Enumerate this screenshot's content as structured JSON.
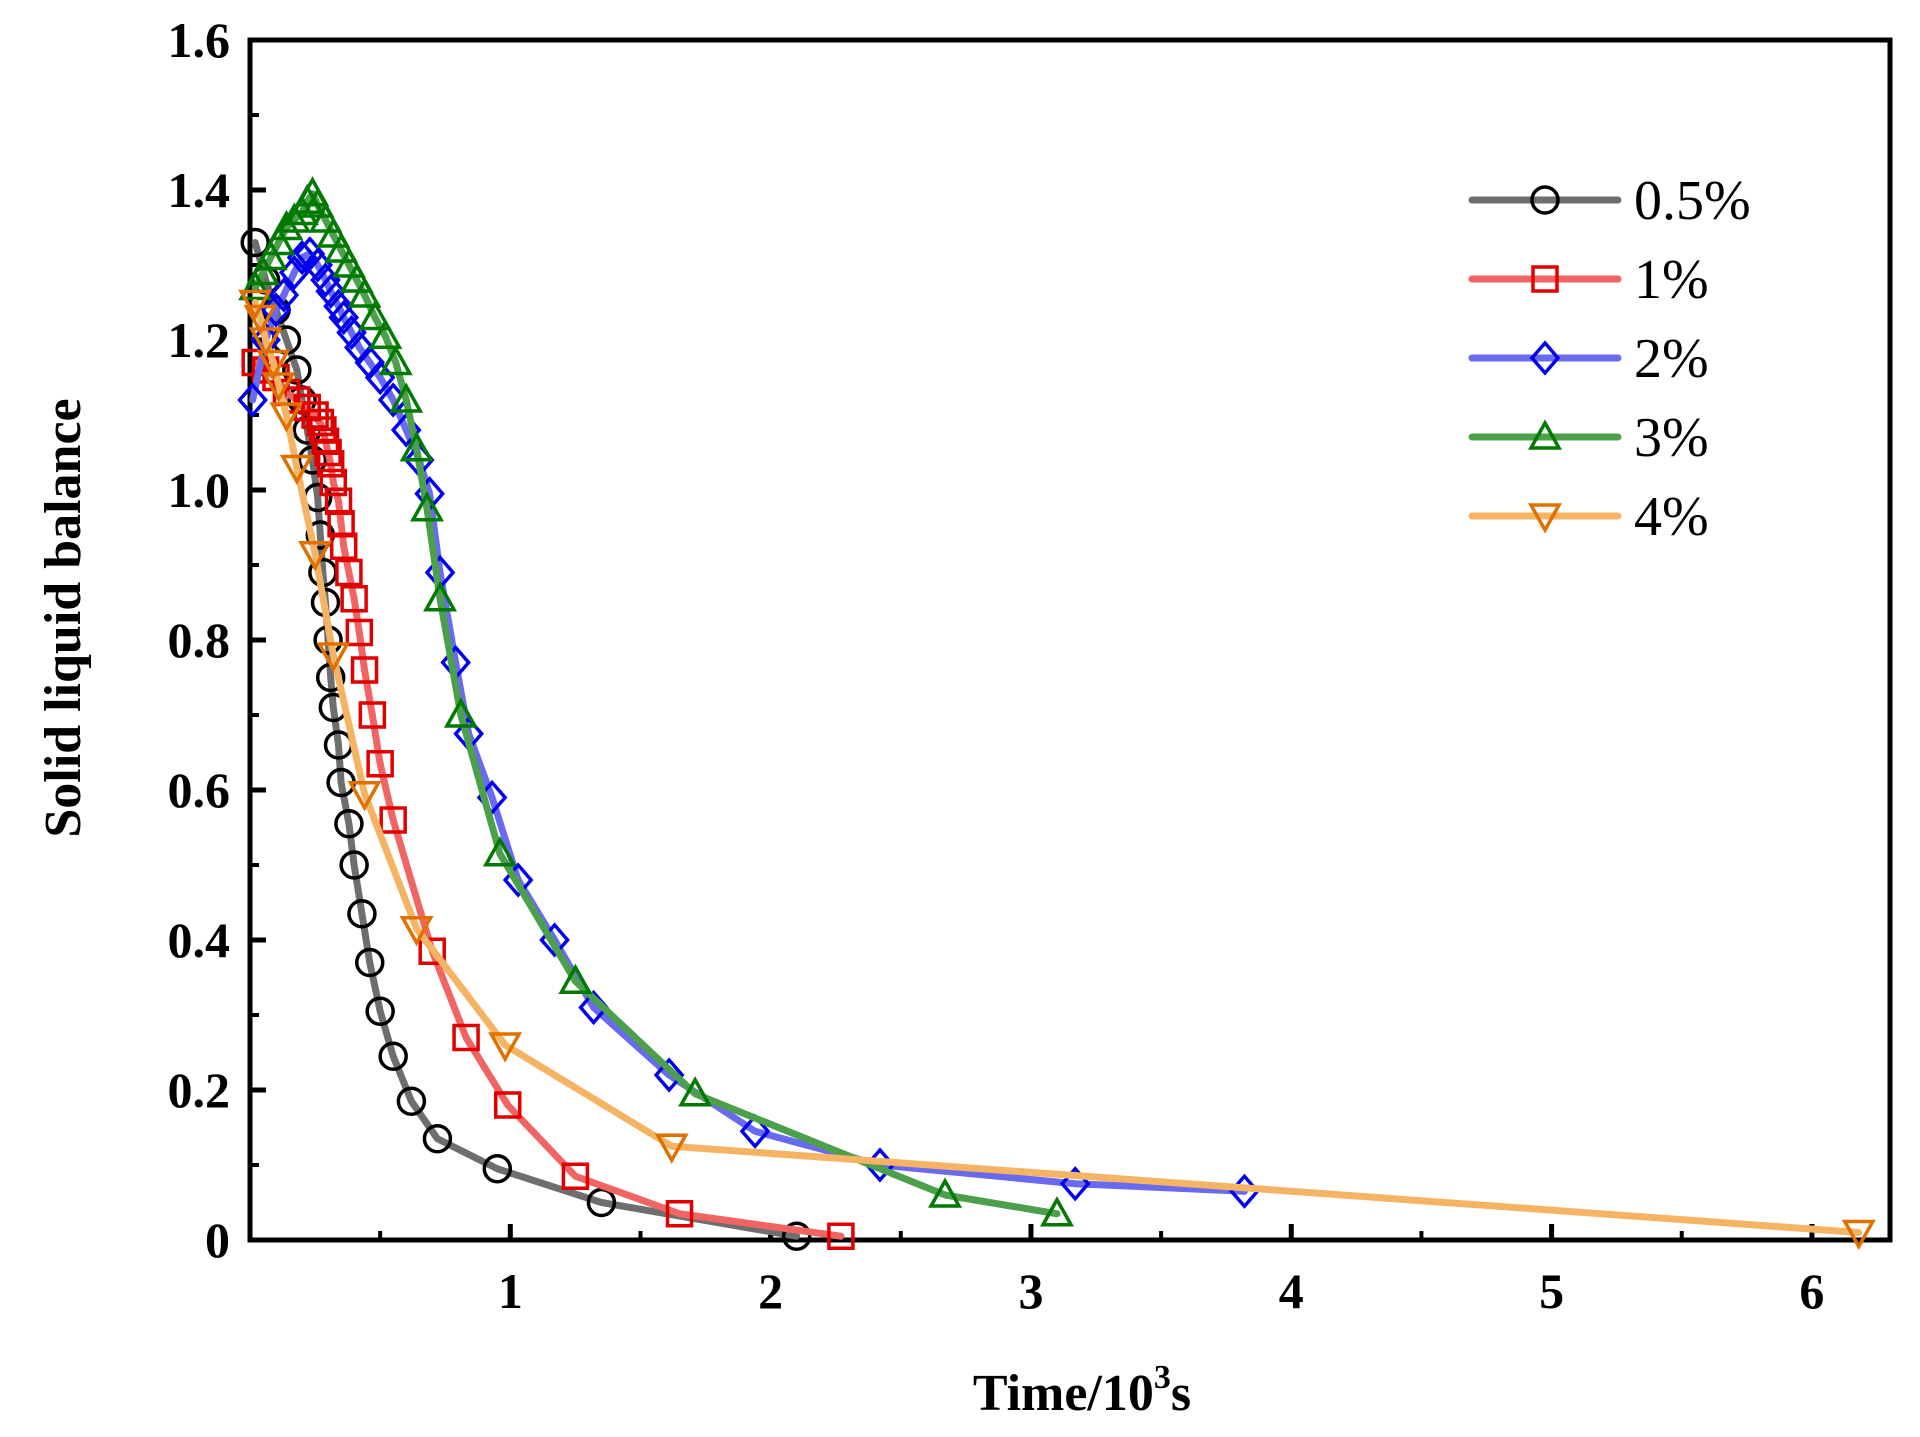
{
  "chart_data": {
    "type": "line",
    "title": "",
    "xlabel_base": "Time/10",
    "xlabel_sup": "3",
    "xlabel_unit": "s",
    "ylabel": "Solid liquid balance",
    "xlim": [
      0,
      6.3
    ],
    "ylim": [
      0,
      1.6
    ],
    "xticks": [
      1,
      2,
      3,
      4,
      5,
      6
    ],
    "xtick_labels": [
      "1",
      "2",
      "3",
      "4",
      "5",
      "6"
    ],
    "yticks": [
      0,
      0.2,
      0.4,
      0.6,
      0.8,
      1.0,
      1.2,
      1.4,
      1.6
    ],
    "ytick_labels": [
      "0",
      "0.2",
      "0.4",
      "0.6",
      "0.8",
      "1.0",
      "1.2",
      "1.4",
      "1.6"
    ],
    "legend_position": "top-right",
    "series": [
      {
        "name": "0.5%",
        "color": "#6e6e6e",
        "marker_color": "#000000",
        "marker": "circle",
        "points": [
          [
            0.02,
            1.33
          ],
          [
            0.06,
            1.28
          ],
          [
            0.1,
            1.24
          ],
          [
            0.14,
            1.2
          ],
          [
            0.18,
            1.16
          ],
          [
            0.2,
            1.12
          ],
          [
            0.22,
            1.08
          ],
          [
            0.24,
            1.04
          ],
          [
            0.26,
            0.99
          ],
          [
            0.27,
            0.94
          ],
          [
            0.28,
            0.89
          ],
          [
            0.29,
            0.85
          ],
          [
            0.3,
            0.8
          ],
          [
            0.31,
            0.75
          ],
          [
            0.32,
            0.71
          ],
          [
            0.34,
            0.66
          ],
          [
            0.35,
            0.61
          ],
          [
            0.38,
            0.555
          ],
          [
            0.4,
            0.5
          ],
          [
            0.43,
            0.435
          ],
          [
            0.46,
            0.37
          ],
          [
            0.5,
            0.305
          ],
          [
            0.55,
            0.245
          ],
          [
            0.62,
            0.185
          ],
          [
            0.72,
            0.135
          ],
          [
            0.95,
            0.095
          ],
          [
            1.35,
            0.05
          ],
          [
            2.1,
            0.005
          ]
        ]
      },
      {
        "name": "1%",
        "color": "#f06464",
        "marker_color": "#e00000",
        "marker": "square",
        "points": [
          [
            0.02,
            1.17
          ],
          [
            0.06,
            1.16
          ],
          [
            0.1,
            1.15
          ],
          [
            0.14,
            1.13
          ],
          [
            0.18,
            1.12
          ],
          [
            0.22,
            1.11
          ],
          [
            0.25,
            1.1
          ],
          [
            0.27,
            1.09
          ],
          [
            0.28,
            1.08
          ],
          [
            0.29,
            1.065
          ],
          [
            0.3,
            1.05
          ],
          [
            0.31,
            1.035
          ],
          [
            0.32,
            1.01
          ],
          [
            0.34,
            0.985
          ],
          [
            0.35,
            0.955
          ],
          [
            0.36,
            0.925
          ],
          [
            0.38,
            0.89
          ],
          [
            0.4,
            0.855
          ],
          [
            0.42,
            0.81
          ],
          [
            0.44,
            0.76
          ],
          [
            0.47,
            0.7
          ],
          [
            0.5,
            0.635
          ],
          [
            0.55,
            0.56
          ],
          [
            0.7,
            0.385
          ],
          [
            0.83,
            0.27
          ],
          [
            0.99,
            0.18
          ],
          [
            1.25,
            0.085
          ],
          [
            1.65,
            0.035
          ],
          [
            2.27,
            0.005
          ]
        ]
      },
      {
        "name": "2%",
        "color": "#6a6af0",
        "marker_color": "#0000ee",
        "marker": "diamond",
        "points": [
          [
            0.01,
            1.12
          ],
          [
            0.06,
            1.2
          ],
          [
            0.1,
            1.24
          ],
          [
            0.13,
            1.26
          ],
          [
            0.17,
            1.29
          ],
          [
            0.2,
            1.31
          ],
          [
            0.23,
            1.315
          ],
          [
            0.26,
            1.3
          ],
          [
            0.29,
            1.28
          ],
          [
            0.31,
            1.265
          ],
          [
            0.34,
            1.245
          ],
          [
            0.36,
            1.23
          ],
          [
            0.39,
            1.21
          ],
          [
            0.42,
            1.19
          ],
          [
            0.46,
            1.17
          ],
          [
            0.5,
            1.15
          ],
          [
            0.55,
            1.12
          ],
          [
            0.6,
            1.08
          ],
          [
            0.65,
            1.04
          ],
          [
            0.69,
            0.995
          ],
          [
            0.73,
            0.89
          ],
          [
            0.79,
            0.77
          ],
          [
            0.84,
            0.675
          ],
          [
            0.93,
            0.59
          ],
          [
            1.03,
            0.48
          ],
          [
            1.17,
            0.4
          ],
          [
            1.32,
            0.31
          ],
          [
            1.61,
            0.22
          ],
          [
            1.94,
            0.145
          ],
          [
            2.42,
            0.1
          ],
          [
            3.17,
            0.075
          ],
          [
            3.82,
            0.065
          ]
        ]
      },
      {
        "name": "3%",
        "color": "#4ca04c",
        "marker_color": "#007a00",
        "marker": "triangle-up",
        "points": [
          [
            0.02,
            1.27
          ],
          [
            0.05,
            1.29
          ],
          [
            0.08,
            1.31
          ],
          [
            0.11,
            1.33
          ],
          [
            0.14,
            1.35
          ],
          [
            0.17,
            1.36
          ],
          [
            0.2,
            1.37
          ],
          [
            0.22,
            1.385
          ],
          [
            0.24,
            1.395
          ],
          [
            0.26,
            1.38
          ],
          [
            0.29,
            1.36
          ],
          [
            0.32,
            1.34
          ],
          [
            0.35,
            1.32
          ],
          [
            0.38,
            1.3
          ],
          [
            0.41,
            1.28
          ],
          [
            0.44,
            1.26
          ],
          [
            0.48,
            1.23
          ],
          [
            0.52,
            1.205
          ],
          [
            0.56,
            1.17
          ],
          [
            0.6,
            1.12
          ],
          [
            0.64,
            1.055
          ],
          [
            0.68,
            0.975
          ],
          [
            0.73,
            0.855
          ],
          [
            0.81,
            0.7
          ],
          [
            0.96,
            0.515
          ],
          [
            1.25,
            0.345
          ],
          [
            1.71,
            0.195
          ],
          [
            2.67,
            0.06
          ],
          [
            3.1,
            0.035
          ]
        ]
      },
      {
        "name": "4%",
        "color": "#f5b464",
        "marker_color": "#e07000",
        "marker": "triangle-down",
        "points": [
          [
            0.02,
            1.25
          ],
          [
            0.04,
            1.23
          ],
          [
            0.06,
            1.2
          ],
          [
            0.09,
            1.17
          ],
          [
            0.11,
            1.14
          ],
          [
            0.14,
            1.1
          ],
          [
            0.18,
            1.03
          ],
          [
            0.25,
            0.915
          ],
          [
            0.32,
            0.78
          ],
          [
            0.44,
            0.595
          ],
          [
            0.64,
            0.415
          ],
          [
            0.98,
            0.26
          ],
          [
            1.62,
            0.125
          ],
          [
            6.18,
            0.01
          ]
        ]
      }
    ]
  }
}
